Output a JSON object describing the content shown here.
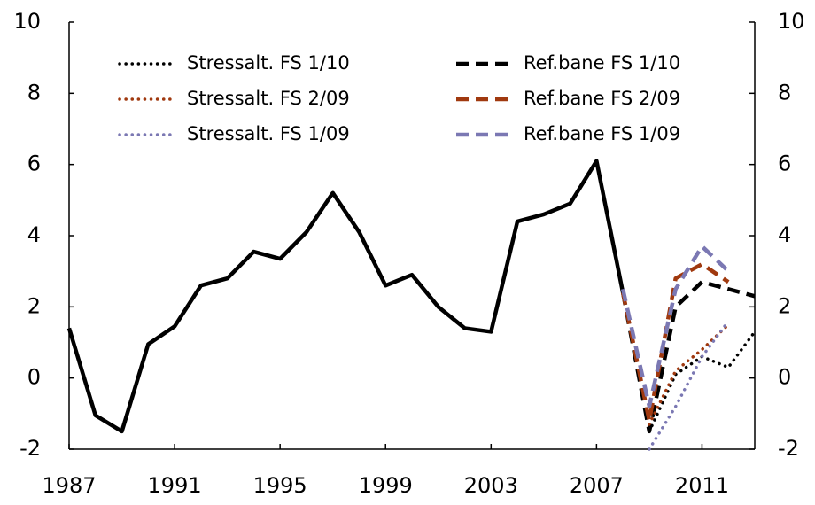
{
  "chart_data": {
    "type": "line",
    "x": [
      1987,
      1988,
      1989,
      1990,
      1991,
      1992,
      1993,
      1994,
      1995,
      1996,
      1997,
      1998,
      1999,
      2000,
      2001,
      2002,
      2003,
      2004,
      2005,
      2006,
      2007,
      2008,
      2009,
      2010,
      2011,
      2012,
      2013
    ],
    "series": [
      {
        "color": "#000000",
        "style": "solid",
        "values": [
          1.4,
          -1.05,
          -1.5,
          0.95,
          1.45,
          2.6,
          2.8,
          3.55,
          3.35,
          4.1,
          5.2,
          4.1,
          2.6,
          2.9,
          2.0,
          1.4,
          1.3,
          4.4,
          4.6,
          4.9,
          6.1,
          2.4,
          null,
          null,
          null,
          null,
          null
        ]
      },
      {
        "name": "Stressalt. FS 1/10",
        "color": "#000000",
        "style": "dotted",
        "values": [
          null,
          null,
          null,
          null,
          null,
          null,
          null,
          null,
          null,
          null,
          null,
          null,
          null,
          null,
          null,
          null,
          null,
          null,
          null,
          null,
          null,
          null,
          -1.5,
          0.1,
          0.6,
          0.3,
          1.3
        ]
      },
      {
        "name": "Ref.bane FS 1/10",
        "color": "#000000",
        "style": "dashed",
        "values": [
          null,
          null,
          null,
          null,
          null,
          null,
          null,
          null,
          null,
          null,
          null,
          null,
          null,
          null,
          null,
          null,
          null,
          null,
          null,
          null,
          null,
          2.4,
          -1.5,
          2.0,
          2.7,
          2.5,
          2.3
        ]
      },
      {
        "name": "Stressalt. FS 2/09",
        "color": "#a0390f",
        "style": "dotted",
        "values": [
          null,
          null,
          null,
          null,
          null,
          null,
          null,
          null,
          null,
          null,
          null,
          null,
          null,
          null,
          null,
          null,
          null,
          null,
          null,
          null,
          null,
          null,
          -1.3,
          0.2,
          0.8,
          1.5,
          null
        ]
      },
      {
        "name": "Ref.bane FS 2/09",
        "color": "#a0390f",
        "style": "dashed",
        "values": [
          null,
          null,
          null,
          null,
          null,
          null,
          null,
          null,
          null,
          null,
          null,
          null,
          null,
          null,
          null,
          null,
          null,
          null,
          null,
          null,
          null,
          2.4,
          -1.2,
          2.8,
          3.2,
          2.7,
          null
        ]
      },
      {
        "name": "Stressalt. FS 1/09",
        "color": "#7b78b3",
        "style": "dotted",
        "values": [
          null,
          null,
          null,
          null,
          null,
          null,
          null,
          null,
          null,
          null,
          null,
          null,
          null,
          null,
          null,
          null,
          null,
          null,
          null,
          null,
          null,
          null,
          -2.0,
          -0.8,
          0.6,
          1.6,
          null
        ]
      },
      {
        "name": "Ref.bane FS 1/09",
        "color": "#7b78b3",
        "style": "dashed",
        "values": [
          null,
          null,
          null,
          null,
          null,
          null,
          null,
          null,
          null,
          null,
          null,
          null,
          null,
          null,
          null,
          null,
          null,
          null,
          null,
          null,
          null,
          2.5,
          -0.8,
          2.5,
          3.7,
          3.0,
          null
        ]
      }
    ],
    "xlim": [
      1987,
      2013
    ],
    "xticks": [
      1987,
      1991,
      1995,
      1999,
      2003,
      2007,
      2011
    ],
    "ylim": [
      -2,
      10
    ],
    "yticks": [
      -2,
      0,
      2,
      4,
      6,
      8,
      10
    ],
    "y2lim": [
      -2,
      10
    ],
    "y2ticks": [
      -2,
      0,
      2,
      4,
      6,
      8,
      10
    ]
  }
}
